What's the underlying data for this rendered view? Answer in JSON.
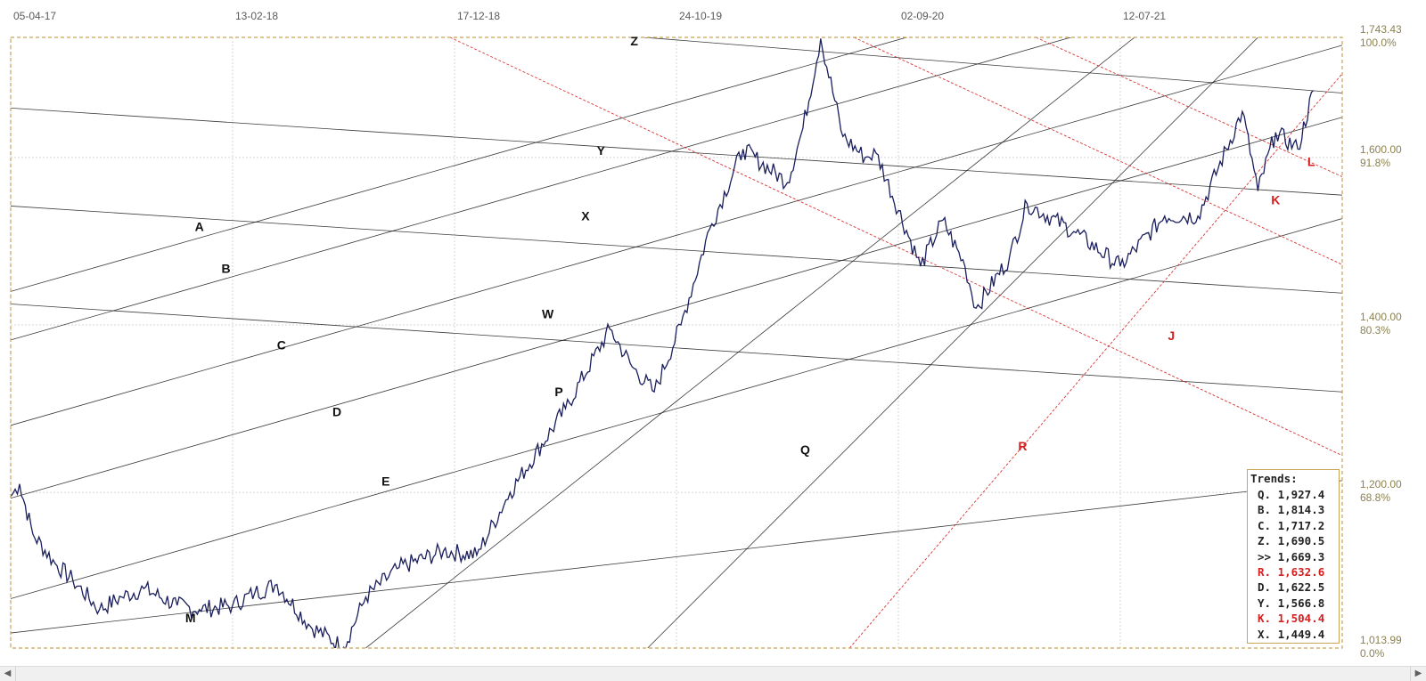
{
  "chart_data": {
    "type": "line",
    "title": "",
    "xlabel": "",
    "ylabel": "",
    "x_tick_labels": [
      "05-04-17",
      "13-02-18",
      "17-12-18",
      "24-10-19",
      "02-09-20",
      "12-07-21"
    ],
    "y_ticks": [
      {
        "value": 1743.43,
        "label": "1,743.43",
        "pct": "100.0%"
      },
      {
        "value": 1600,
        "label": "1,600.00",
        "pct": "91.8%"
      },
      {
        "value": 1400,
        "label": "1,400.00",
        "pct": "80.3%"
      },
      {
        "value": 1200,
        "label": "1,200.00",
        "pct": "68.8%"
      },
      {
        "value": 1013.99,
        "label": "1,013.99",
        "pct": "0.0%"
      }
    ],
    "ylim": [
      1013.99,
      1743.43
    ],
    "xlim": [
      0,
      6
    ],
    "grid": true,
    "legend_position": "bottom-right",
    "price_series": {
      "x": [
        0,
        0.04,
        0.1,
        0.2,
        0.28,
        0.4,
        0.5,
        0.6,
        0.75,
        0.85,
        1.0,
        1.1,
        1.2,
        1.35,
        1.5,
        1.6,
        1.75,
        1.95,
        2.1,
        2.25,
        2.5,
        2.7,
        2.8,
        2.9,
        3.02,
        3.15,
        3.3,
        3.5,
        3.57,
        3.65,
        3.75,
        3.85,
        3.9,
        4.1,
        4.2,
        4.3,
        4.35,
        4.5,
        4.58,
        4.8,
        5.0,
        5.2,
        5.35,
        5.55,
        5.62,
        5.7,
        5.8,
        5.87
      ],
      "y": [
        1195,
        1210,
        1150,
        1115,
        1095,
        1060,
        1075,
        1085,
        1065,
        1060,
        1065,
        1080,
        1090,
        1040,
        1015,
        1075,
        1110,
        1130,
        1125,
        1200,
        1300,
        1395,
        1350,
        1320,
        1400,
        1515,
        1610,
        1570,
        1635,
        1742,
        1625,
        1600,
        1605,
        1470,
        1525,
        1470,
        1420,
        1480,
        1545,
        1510,
        1470,
        1530,
        1530,
        1655,
        1560,
        1630,
        1610,
        1680
      ]
    },
    "trend_lines": [
      {
        "name": "A",
        "color": "#1a1a1a",
        "x1": 0,
        "y1": 1440,
        "x2": 6,
        "y2": 1891
      },
      {
        "name": "B",
        "color": "#1a1a1a",
        "x1": 0,
        "y1": 1382,
        "x2": 6,
        "y2": 1836
      },
      {
        "name": "C",
        "color": "#1a1a1a",
        "x1": 0,
        "y1": 1280,
        "x2": 6,
        "y2": 1734
      },
      {
        "name": "D",
        "color": "#1a1a1a",
        "x1": 0,
        "y1": 1193,
        "x2": 6,
        "y2": 1648
      },
      {
        "name": "E",
        "color": "#1a1a1a",
        "x1": 0,
        "y1": 1073,
        "x2": 6,
        "y2": 1527
      },
      {
        "name": "M",
        "color": "#1a1a1a",
        "x1": 0,
        "y1": 1032,
        "x2": 6,
        "y2": 1214
      },
      {
        "name": "W",
        "color": "#1a1a1a",
        "x1": 0,
        "y1": 1425,
        "x2": 6,
        "y2": 1320
      },
      {
        "name": "X",
        "color": "#1a1a1a",
        "x1": 0,
        "y1": 1542,
        "x2": 6,
        "y2": 1438
      },
      {
        "name": "Y",
        "color": "#1a1a1a",
        "x1": 0,
        "y1": 1659,
        "x2": 6,
        "y2": 1555
      },
      {
        "name": "Z",
        "color": "#1a1a1a",
        "x1": 2.78,
        "y1": 1745,
        "x2": 6,
        "y2": 1677
      },
      {
        "name": "P",
        "color": "#1a1a1a",
        "x1": 1.6,
        "y1": 1013.99,
        "x2": 5.1,
        "y2": 1751
      },
      {
        "name": "Q",
        "color": "#1a1a1a",
        "x1": 2.87,
        "y1": 1013.99,
        "x2": 5.62,
        "y2": 1743.43
      },
      {
        "name": "R",
        "color": "#d42020",
        "x1": 3.78,
        "y1": 1013.99,
        "x2": 6,
        "y2": 1700
      },
      {
        "name": "J",
        "color": "#d42020",
        "x1": 1.98,
        "y1": 1743.43,
        "x2": 6,
        "y2": 1244
      },
      {
        "name": "K",
        "color": "#d42020",
        "x1": 3.8,
        "y1": 1743.43,
        "x2": 6,
        "y2": 1472
      },
      {
        "name": "L",
        "color": "#d42020",
        "x1": 4.62,
        "y1": 1743.43,
        "x2": 6,
        "y2": 1577
      }
    ],
    "trend_label_points": [
      {
        "name": "A",
        "x": 0.85,
        "y": 1512,
        "color": "#111111"
      },
      {
        "name": "B",
        "x": 0.97,
        "y": 1462,
        "color": "#111111"
      },
      {
        "name": "C",
        "x": 1.22,
        "y": 1371,
        "color": "#111111"
      },
      {
        "name": "D",
        "x": 1.47,
        "y": 1291,
        "color": "#111111"
      },
      {
        "name": "E",
        "x": 1.69,
        "y": 1208,
        "color": "#111111"
      },
      {
        "name": "M",
        "x": 0.81,
        "y": 1045,
        "color": "#111111"
      },
      {
        "name": "W",
        "x": 2.42,
        "y": 1408,
        "color": "#111111"
      },
      {
        "name": "X",
        "x": 2.59,
        "y": 1525,
        "color": "#111111"
      },
      {
        "name": "Y",
        "x": 2.66,
        "y": 1603,
        "color": "#111111"
      },
      {
        "name": "Z",
        "x": 2.81,
        "y": 1734,
        "color": "#111111"
      },
      {
        "name": "P",
        "x": 2.47,
        "y": 1315,
        "color": "#111111"
      },
      {
        "name": "Q",
        "x": 3.58,
        "y": 1246,
        "color": "#111111"
      },
      {
        "name": "R",
        "x": 4.56,
        "y": 1250,
        "color": "#d42020"
      },
      {
        "name": "J",
        "x": 5.23,
        "y": 1382,
        "color": "#d42020"
      },
      {
        "name": "K",
        "x": 5.7,
        "y": 1544,
        "color": "#d42020"
      },
      {
        "name": "L",
        "x": 5.86,
        "y": 1590,
        "color": "#d42020"
      }
    ],
    "legend": {
      "title": "Trends:",
      "entries": [
        {
          "key": "Q.",
          "value": "1,927.4",
          "color": "#222222"
        },
        {
          "key": "B.",
          "value": "1,814.3",
          "color": "#222222"
        },
        {
          "key": "C.",
          "value": "1,717.2",
          "color": "#222222"
        },
        {
          "key": "Z.",
          "value": "1,690.5",
          "color": "#222222"
        },
        {
          "key": ">>",
          "value": "1,669.3",
          "color": "#222222"
        },
        {
          "key": "R.",
          "value": "1,632.6",
          "color": "#d42020"
        },
        {
          "key": "D.",
          "value": "1,622.5",
          "color": "#222222"
        },
        {
          "key": "Y.",
          "value": "1,566.8",
          "color": "#222222"
        },
        {
          "key": "K.",
          "value": "1,504.4",
          "color": "#d42020"
        },
        {
          "key": "X.",
          "value": "1,449.4",
          "color": "#222222"
        }
      ]
    }
  },
  "colors": {
    "price": "#1a1e5c",
    "border": "#c9a455",
    "grid": "#d6d6d6",
    "black_trend": "#1a1a1a",
    "red_trend": "#d42020"
  },
  "scrollbar": {
    "left_icon": "arrow-left-icon",
    "right_icon": "arrow-right-icon",
    "left_glyph": "◀",
    "right_glyph": "▶"
  }
}
